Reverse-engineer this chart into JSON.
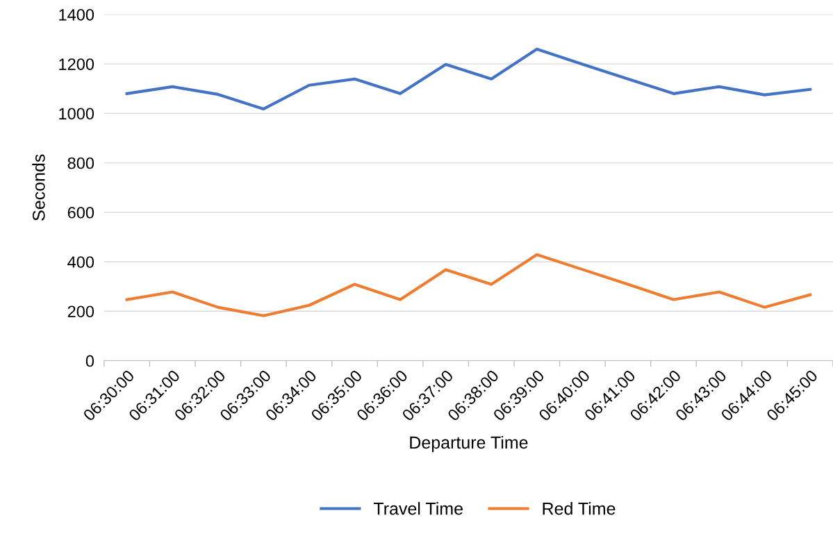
{
  "chart_data": {
    "type": "line",
    "xlabel": "Departure Time",
    "ylabel": "Seconds",
    "categories": [
      "06:30:00",
      "06:31:00",
      "06:32:00",
      "06:33:00",
      "06:34:00",
      "06:35:00",
      "06:36:00",
      "06:37:00",
      "06:38:00",
      "06:39:00",
      "06:40:00",
      "06:41:00",
      "06:42:00",
      "06:43:00",
      "06:44:00",
      "06:45:00"
    ],
    "series": [
      {
        "name": "Travel Time",
        "color": "#4472c4",
        "values": [
          1080,
          1108,
          1077,
          1018,
          1114,
          1139,
          1080,
          1198,
          1139,
          1260,
          1199,
          1139,
          1080,
          1108,
          1075,
          1097
        ]
      },
      {
        "name": "Red Time",
        "color": "#ed7d31",
        "values": [
          247,
          278,
          216,
          182,
          224,
          309,
          247,
          368,
          309,
          429,
          369,
          309,
          247,
          278,
          216,
          267
        ]
      }
    ],
    "ylim": [
      0,
      1400
    ],
    "yticks": [
      0,
      200,
      400,
      600,
      800,
      1000,
      1200,
      1400
    ],
    "grid": "y",
    "legend": "bottom",
    "marker": "none",
    "line_style": "solid"
  }
}
